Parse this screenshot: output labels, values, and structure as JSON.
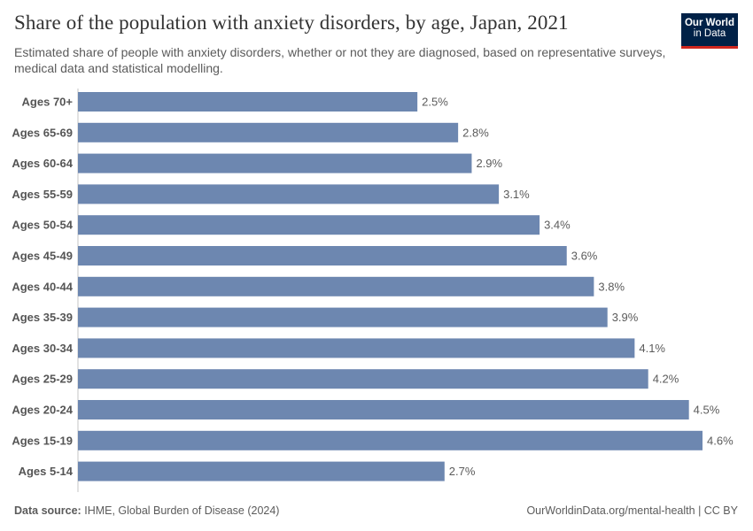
{
  "header": {
    "title": "Share of the population with anxiety disorders, by age, Japan, 2021",
    "subtitle": "Estimated share of people with anxiety disorders, whether or not they are diagnosed, based on representative surveys, medical data and statistical modelling.",
    "logo_line1": "Our World",
    "logo_line2": "in Data"
  },
  "footer": {
    "source_label": "Data source:",
    "source_text": "IHME, Global Burden of Disease (2024)",
    "url": "OurWorldinData.org/mental-health | CC BY"
  },
  "colors": {
    "bar": "#6d87b0",
    "logo_bg": "#002147",
    "logo_accent": "#ce261e"
  },
  "chart_data": {
    "type": "bar",
    "orientation": "horizontal",
    "categories": [
      "Ages 70+",
      "Ages 65-69",
      "Ages 60-64",
      "Ages 55-59",
      "Ages 50-54",
      "Ages 45-49",
      "Ages 40-44",
      "Ages 35-39",
      "Ages 30-34",
      "Ages 25-29",
      "Ages 20-24",
      "Ages 15-19",
      "Ages 5-14"
    ],
    "values": [
      2.5,
      2.8,
      2.9,
      3.1,
      3.4,
      3.6,
      3.8,
      3.9,
      4.1,
      4.2,
      4.5,
      4.6,
      2.7
    ],
    "value_labels": [
      "2.5%",
      "2.8%",
      "2.9%",
      "3.1%",
      "3.4%",
      "3.6%",
      "3.8%",
      "3.9%",
      "4.1%",
      "4.2%",
      "4.5%",
      "4.6%",
      "2.7%"
    ],
    "unit": "%",
    "xlim": [
      0,
      4.6
    ],
    "grid": false
  }
}
